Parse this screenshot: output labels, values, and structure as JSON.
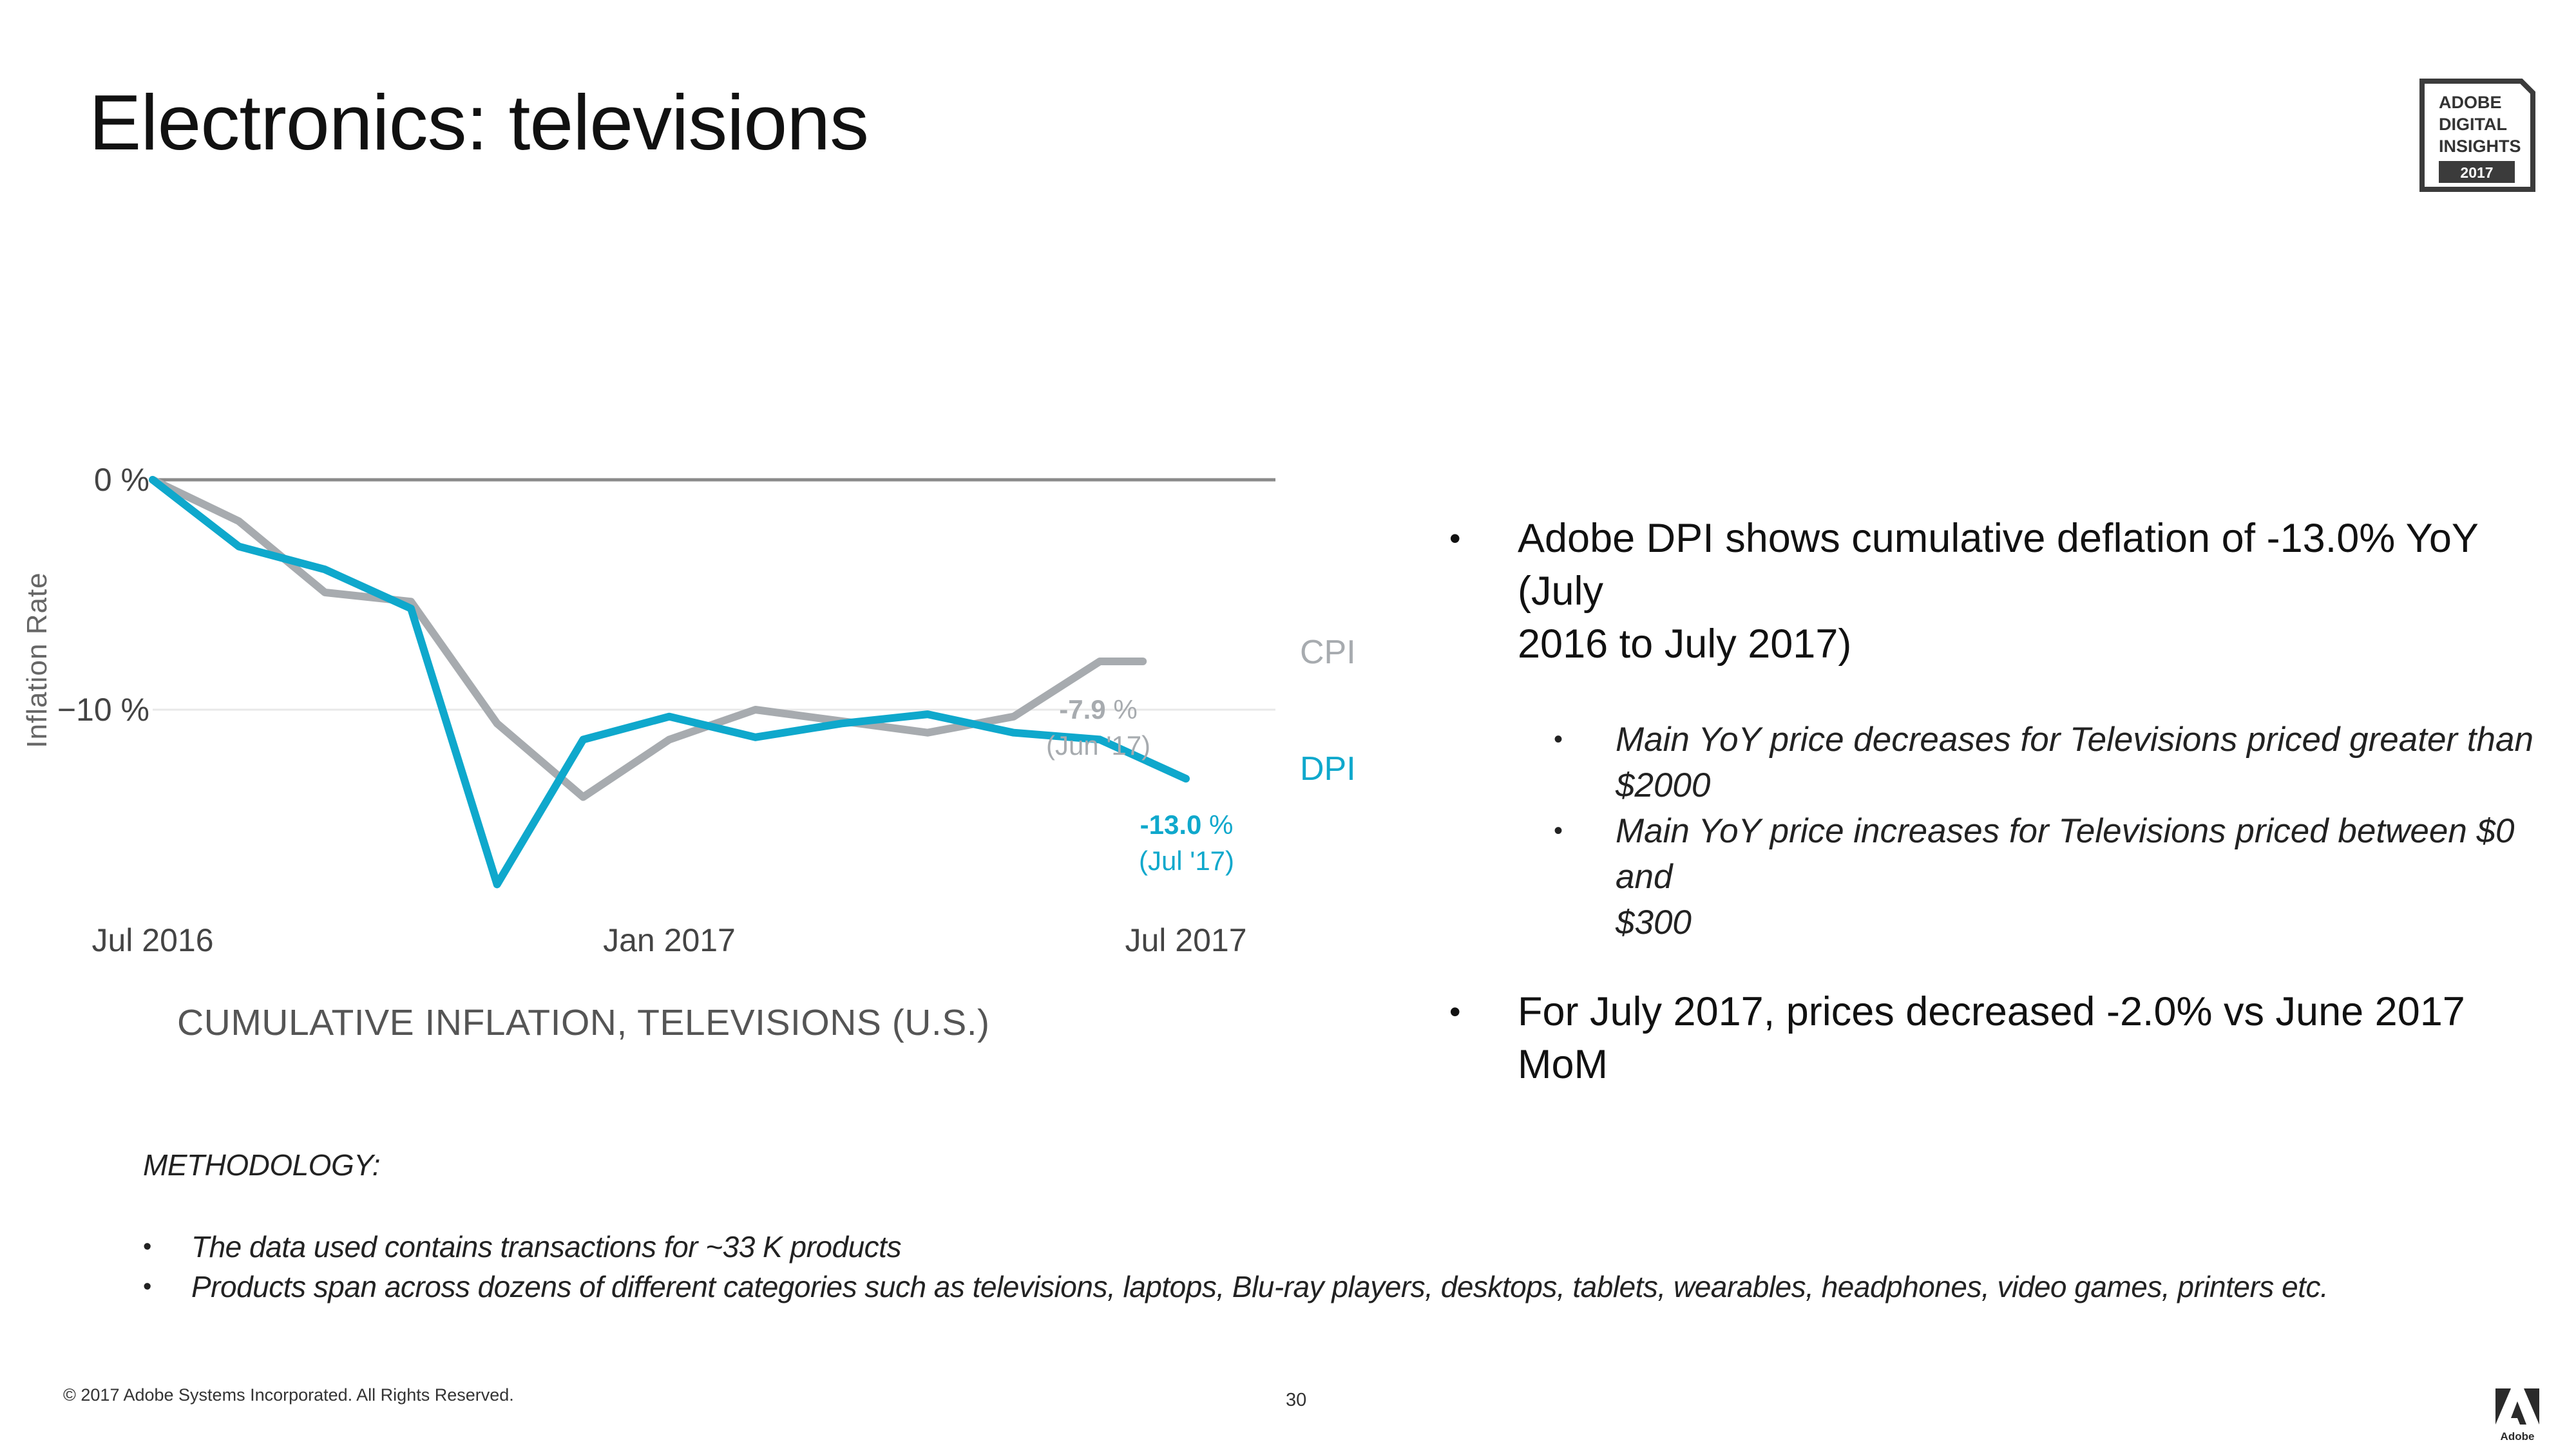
{
  "title": "Electronics: televisions",
  "badge": {
    "line1": "ADOBE",
    "line2": "DIGITAL",
    "line3": "INSIGHTS",
    "year": "2017"
  },
  "chart_data": {
    "type": "line",
    "caption": "CUMULATIVE INFLATION, TELEVISIONS (U.S.)",
    "ylabel": "Inflation Rate",
    "ylim": [
      -17.6,
      0
    ],
    "y_ticks": [
      {
        "value": 0,
        "label": "0 %"
      },
      {
        "value": -10,
        "label": "−10 %"
      }
    ],
    "x_tick_labels": [
      "Jul 2016",
      "Jan 2017",
      "Jul 2017"
    ],
    "x_tick_positions": [
      0,
      6,
      12
    ],
    "grid": true,
    "series": [
      {
        "name": "CPI",
        "color": "#a7abaf",
        "x": [
          0,
          1,
          2,
          3,
          4,
          5,
          6,
          7,
          8,
          9,
          10,
          11,
          11.5
        ],
        "values": [
          0,
          -1.8,
          -4.9,
          -5.3,
          -10.6,
          -13.8,
          -11.3,
          -10.0,
          -10.5,
          -11.0,
          -10.3,
          -7.9,
          -7.9
        ]
      },
      {
        "name": "DPI",
        "color": "#0fa8cc",
        "x": [
          0,
          1,
          2,
          3,
          4,
          5,
          6,
          7,
          8,
          9,
          10,
          11,
          12
        ],
        "values": [
          0,
          -2.9,
          -3.9,
          -5.6,
          -17.6,
          -11.3,
          -10.3,
          -11.2,
          -10.6,
          -10.2,
          -11.0,
          -11.3,
          -13.0
        ]
      }
    ],
    "annotations": [
      {
        "series": "CPI",
        "value": "-7.9",
        "unit": " %",
        "date": "(Jun '17)",
        "color": "#a7abaf"
      },
      {
        "series": "DPI",
        "value": "-13.0",
        "unit": " %",
        "date": "(Jul '17)",
        "color": "#0fa8cc"
      }
    ]
  },
  "bullets": {
    "b1_line1": "Adobe DPI shows cumulative deflation of -13.0% YoY (July",
    "b1_line2": "2016 to July 2017)",
    "s1_line1": "Main YoY price decreases for Televisions priced greater than",
    "s1_line2": "$2000",
    "s2_line1": "Main YoY price increases for Televisions priced between $0 and",
    "s2_line2": "$300",
    "b2": "For July 2017, prices decreased -2.0% vs June 2017 MoM"
  },
  "methodology": {
    "heading": "METHODOLOGY:",
    "items": [
      "The data used contains transactions for ~33 K products",
      "Products span across dozens of different categories such as televisions, laptops, Blu-ray players, desktops, tablets, wearables, headphones, video games, printers etc."
    ]
  },
  "footer": {
    "copyright": "© 2017 Adobe Systems Incorporated.  All Rights Reserved.",
    "page": "30"
  }
}
